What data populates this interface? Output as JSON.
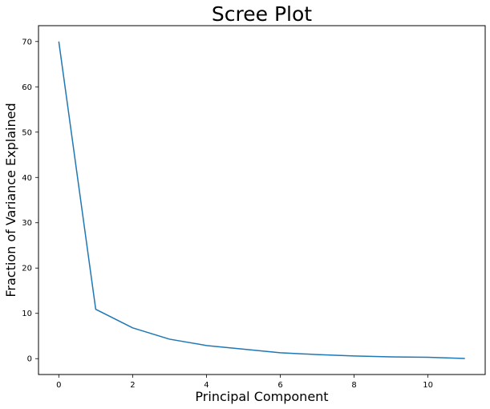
{
  "chart_data": {
    "type": "line",
    "title": "Scree Plot",
    "xlabel": "Principal Component",
    "ylabel": "Fraction of Variance Explained",
    "x": [
      0,
      1,
      2,
      3,
      4,
      5,
      6,
      7,
      8,
      9,
      10,
      11
    ],
    "series": [
      {
        "values": [
          70.0,
          10.9,
          6.8,
          4.3,
          2.9,
          2.1,
          1.3,
          0.9,
          0.6,
          0.4,
          0.3,
          0.05
        ],
        "color": "#1f77b4"
      }
    ],
    "xlim": [
      -0.55,
      11.55
    ],
    "ylim": [
      -3.5,
      73.5
    ],
    "xticks": [
      0,
      2,
      4,
      6,
      8,
      10
    ],
    "yticks": [
      0,
      10,
      20,
      30,
      40,
      50,
      60,
      70
    ],
    "grid": false,
    "legend": "none"
  }
}
